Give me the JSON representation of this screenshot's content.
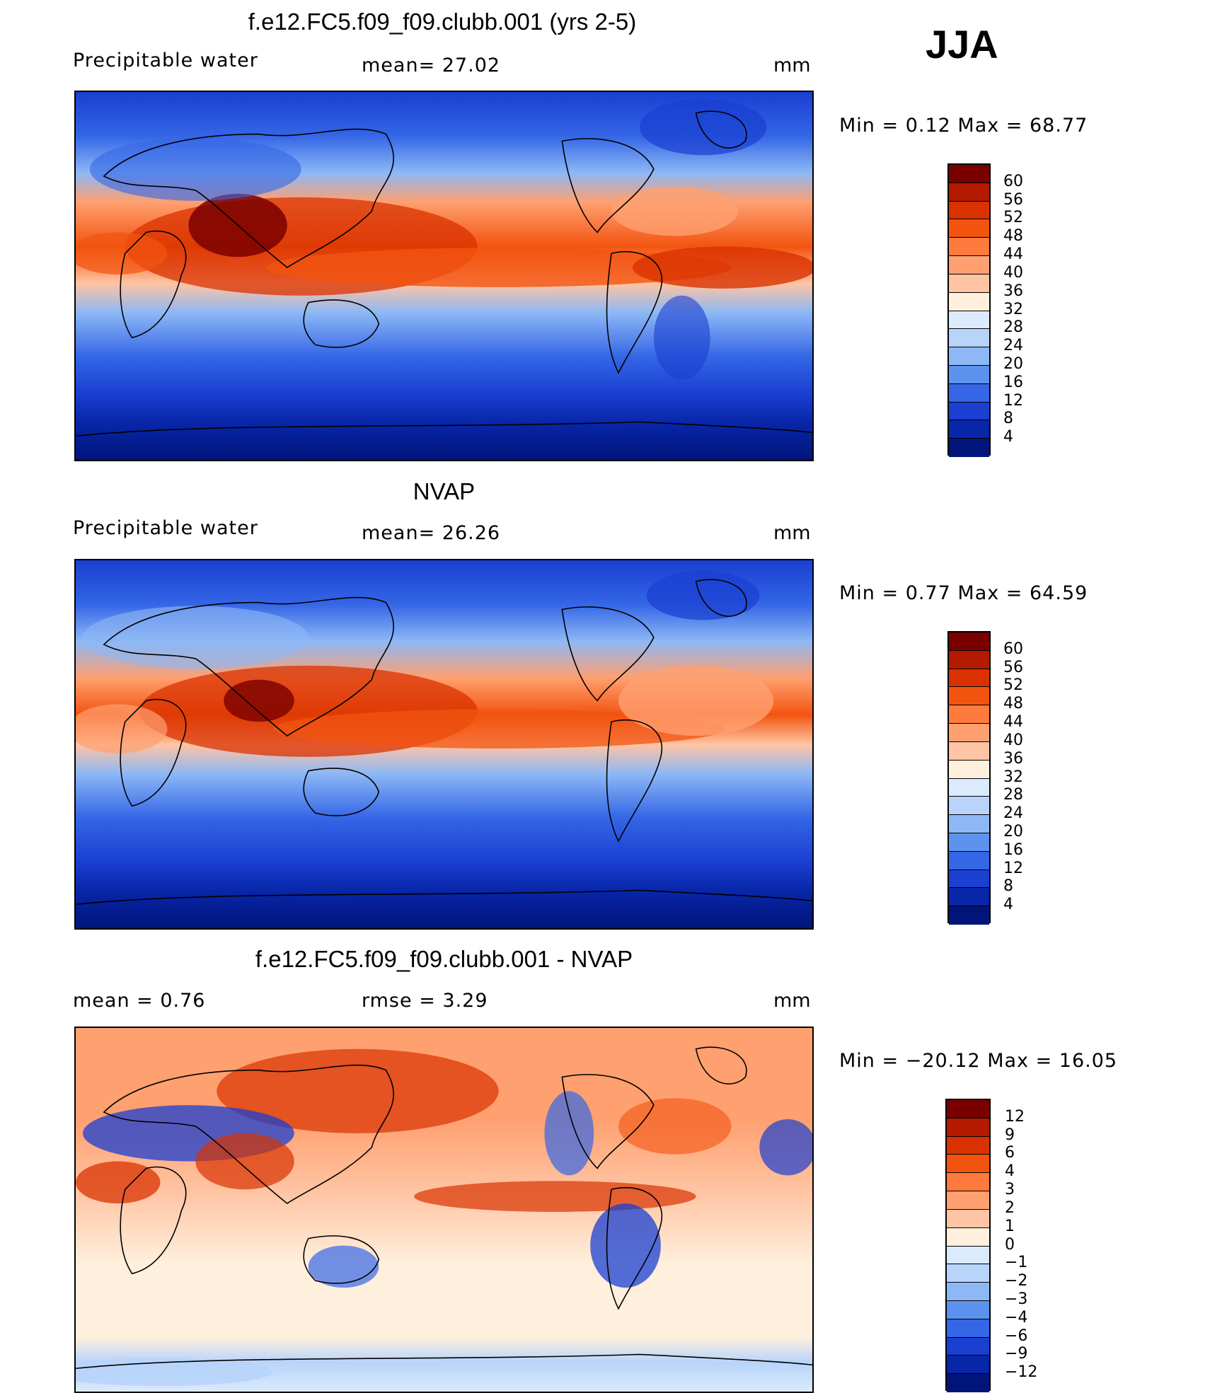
{
  "season": "JJA",
  "panels": [
    {
      "title": "f.e12.FC5.f09_f09.clubb.001 (yrs 2-5)",
      "left_label": "Precipitable  water",
      "center_label": "mean=   27.02",
      "units": "mm",
      "minmax": "Min  =     0.12  Max  =    68.77",
      "colorbar": {
        "labels": [
          "60",
          "56",
          "52",
          "48",
          "44",
          "40",
          "36",
          "32",
          "28",
          "24",
          "20",
          "16",
          "12",
          "8",
          "4"
        ],
        "colors": [
          "#7a0000",
          "#b31a00",
          "#d93200",
          "#f25410",
          "#ff7b3d",
          "#ffa070",
          "#ffc4a3",
          "#fff0dd",
          "#dbeafc",
          "#b8d4fa",
          "#8db8f5",
          "#5d93ee",
          "#3466e6",
          "#1a3fd1",
          "#0826a8",
          "#00147a"
        ]
      }
    },
    {
      "title": "NVAP",
      "left_label": "Precipitable  water",
      "center_label": "mean=   26.26",
      "units": "mm",
      "minmax": "Min  =     0.77  Max  =    64.59",
      "colorbar": {
        "labels": [
          "60",
          "56",
          "52",
          "48",
          "44",
          "40",
          "36",
          "32",
          "28",
          "24",
          "20",
          "16",
          "12",
          "8",
          "4"
        ],
        "colors": [
          "#7a0000",
          "#b31a00",
          "#d93200",
          "#f25410",
          "#ff7b3d",
          "#ffa070",
          "#ffc4a3",
          "#fff0dd",
          "#dbeafc",
          "#b8d4fa",
          "#8db8f5",
          "#5d93ee",
          "#3466e6",
          "#1a3fd1",
          "#0826a8",
          "#00147a"
        ]
      }
    },
    {
      "title": "f.e12.FC5.f09_f09.clubb.001 - NVAP",
      "left_label": "mean  =     0.76",
      "center_label": "rmse  =      3.29",
      "units": "mm",
      "minmax": "Min  = −20.12  Max  =    16.05",
      "colorbar": {
        "labels": [
          "12",
          "9",
          "6",
          "4",
          "3",
          "2",
          "1",
          "0",
          "−1",
          "−2",
          "−3",
          "−4",
          "−6",
          "−9",
          "−12"
        ],
        "colors": [
          "#7a0000",
          "#b31a00",
          "#d93200",
          "#f25410",
          "#ff7b3d",
          "#ffa070",
          "#ffc4a3",
          "#fff0dd",
          "#dbeafc",
          "#b8d4fa",
          "#8db8f5",
          "#5d93ee",
          "#3466e6",
          "#1a3fd1",
          "#0826a8",
          "#00147a"
        ]
      }
    }
  ]
}
